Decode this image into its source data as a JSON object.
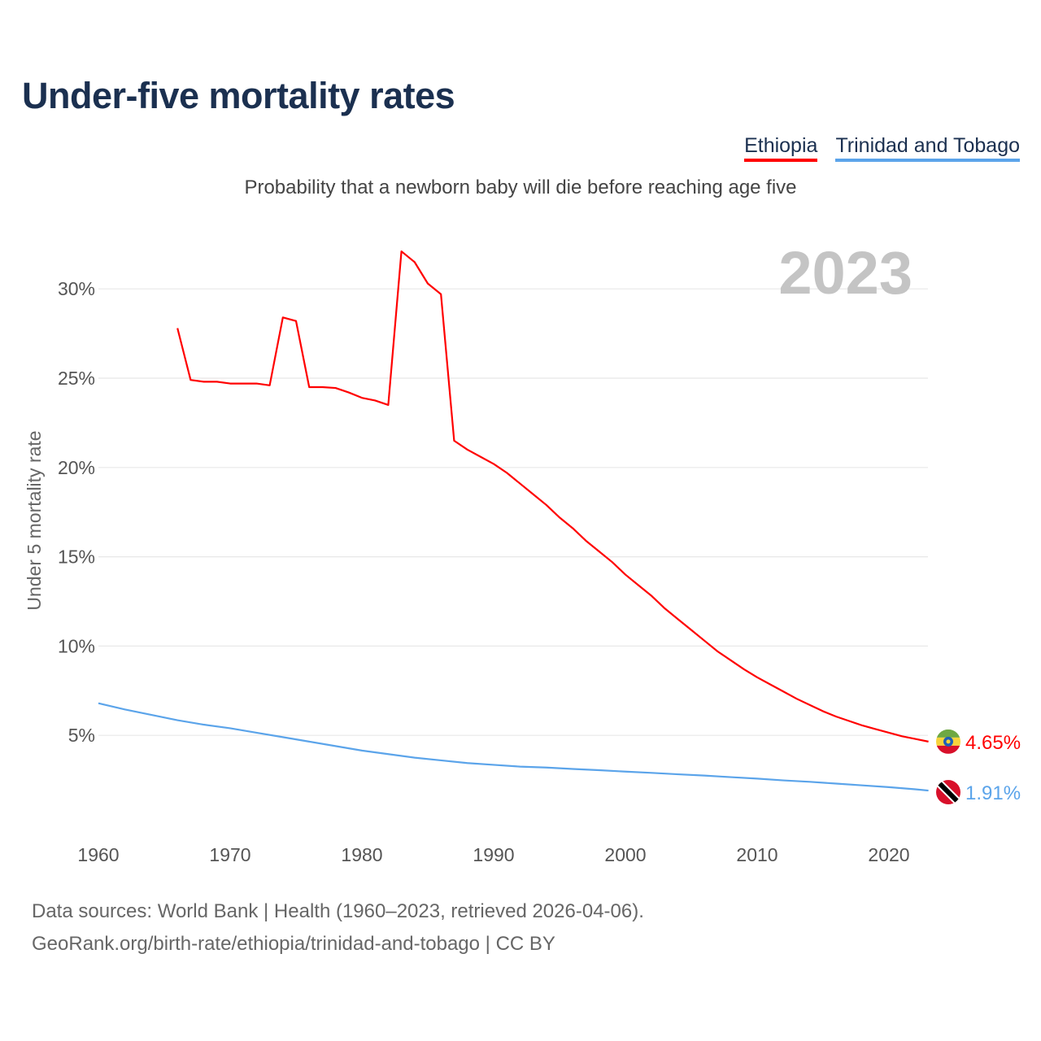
{
  "chart_data": {
    "type": "line",
    "title": "Under-five mortality rates",
    "subtitle": "Probability that a newborn baby will die before reaching age five",
    "ylabel": "Under 5 mortality rate",
    "xlabel": "",
    "year_label": "2023",
    "xlim": [
      1960,
      2023
    ],
    "ylim": [
      0,
      32.5
    ],
    "x_ticks": [
      "1960",
      "1970",
      "1980",
      "1990",
      "2000",
      "2010",
      "2020"
    ],
    "y_ticks": [
      {
        "v": 5,
        "label": "5%"
      },
      {
        "v": 10,
        "label": "10%"
      },
      {
        "v": 15,
        "label": "15%"
      },
      {
        "v": 20,
        "label": "20%"
      },
      {
        "v": 25,
        "label": "25%"
      },
      {
        "v": 30,
        "label": "30%"
      }
    ],
    "grid": true,
    "legend_position": "top-right",
    "series": [
      {
        "name": "Ethiopia",
        "color": "#ff0000",
        "end_label": "4.65%",
        "x": [
          1966,
          1967,
          1968,
          1969,
          1970,
          1971,
          1972,
          1973,
          1974,
          1975,
          1976,
          1977,
          1978,
          1979,
          1980,
          1981,
          1982,
          1983,
          1984,
          1985,
          1986,
          1987,
          1988,
          1989,
          1990,
          1991,
          1992,
          1993,
          1994,
          1995,
          1996,
          1997,
          1998,
          1999,
          2000,
          2001,
          2002,
          2003,
          2004,
          2005,
          2006,
          2007,
          2008,
          2009,
          2010,
          2011,
          2012,
          2013,
          2014,
          2015,
          2016,
          2017,
          2018,
          2019,
          2020,
          2021,
          2022,
          2023
        ],
        "values": [
          27.8,
          24.9,
          24.8,
          24.8,
          24.7,
          24.7,
          24.7,
          24.6,
          28.4,
          28.2,
          24.5,
          24.5,
          24.45,
          24.2,
          23.9,
          23.75,
          23.5,
          32.1,
          31.5,
          30.3,
          29.7,
          21.5,
          21.0,
          20.6,
          20.2,
          19.7,
          19.1,
          18.5,
          17.9,
          17.2,
          16.6,
          15.9,
          15.3,
          14.7,
          14.0,
          13.4,
          12.8,
          12.1,
          11.5,
          10.9,
          10.3,
          9.7,
          9.2,
          8.7,
          8.25,
          7.85,
          7.45,
          7.05,
          6.7,
          6.35,
          6.05,
          5.8,
          5.55,
          5.35,
          5.15,
          4.95,
          4.8,
          4.65
        ]
      },
      {
        "name": "Trinidad and Tobago",
        "color": "#5ba4ea",
        "end_label": "1.91%",
        "x": [
          1960,
          1962,
          1964,
          1966,
          1968,
          1970,
          1972,
          1974,
          1976,
          1978,
          1980,
          1982,
          1984,
          1986,
          1988,
          1990,
          1992,
          1994,
          1996,
          1998,
          2000,
          2002,
          2004,
          2006,
          2008,
          2010,
          2012,
          2014,
          2016,
          2018,
          2020,
          2022,
          2023
        ],
        "values": [
          6.8,
          6.45,
          6.15,
          5.85,
          5.6,
          5.4,
          5.15,
          4.9,
          4.65,
          4.4,
          4.15,
          3.95,
          3.75,
          3.6,
          3.45,
          3.35,
          3.25,
          3.2,
          3.12,
          3.05,
          2.97,
          2.9,
          2.82,
          2.75,
          2.66,
          2.58,
          2.48,
          2.4,
          2.3,
          2.2,
          2.1,
          1.98,
          1.91
        ]
      }
    ]
  },
  "source_line1": "Data sources: World Bank | Health (1960–2023, retrieved 2026-04-06).",
  "source_line2": "GeoRank.org/birth-rate/ethiopia/trinidad-and-tobago | CC BY"
}
